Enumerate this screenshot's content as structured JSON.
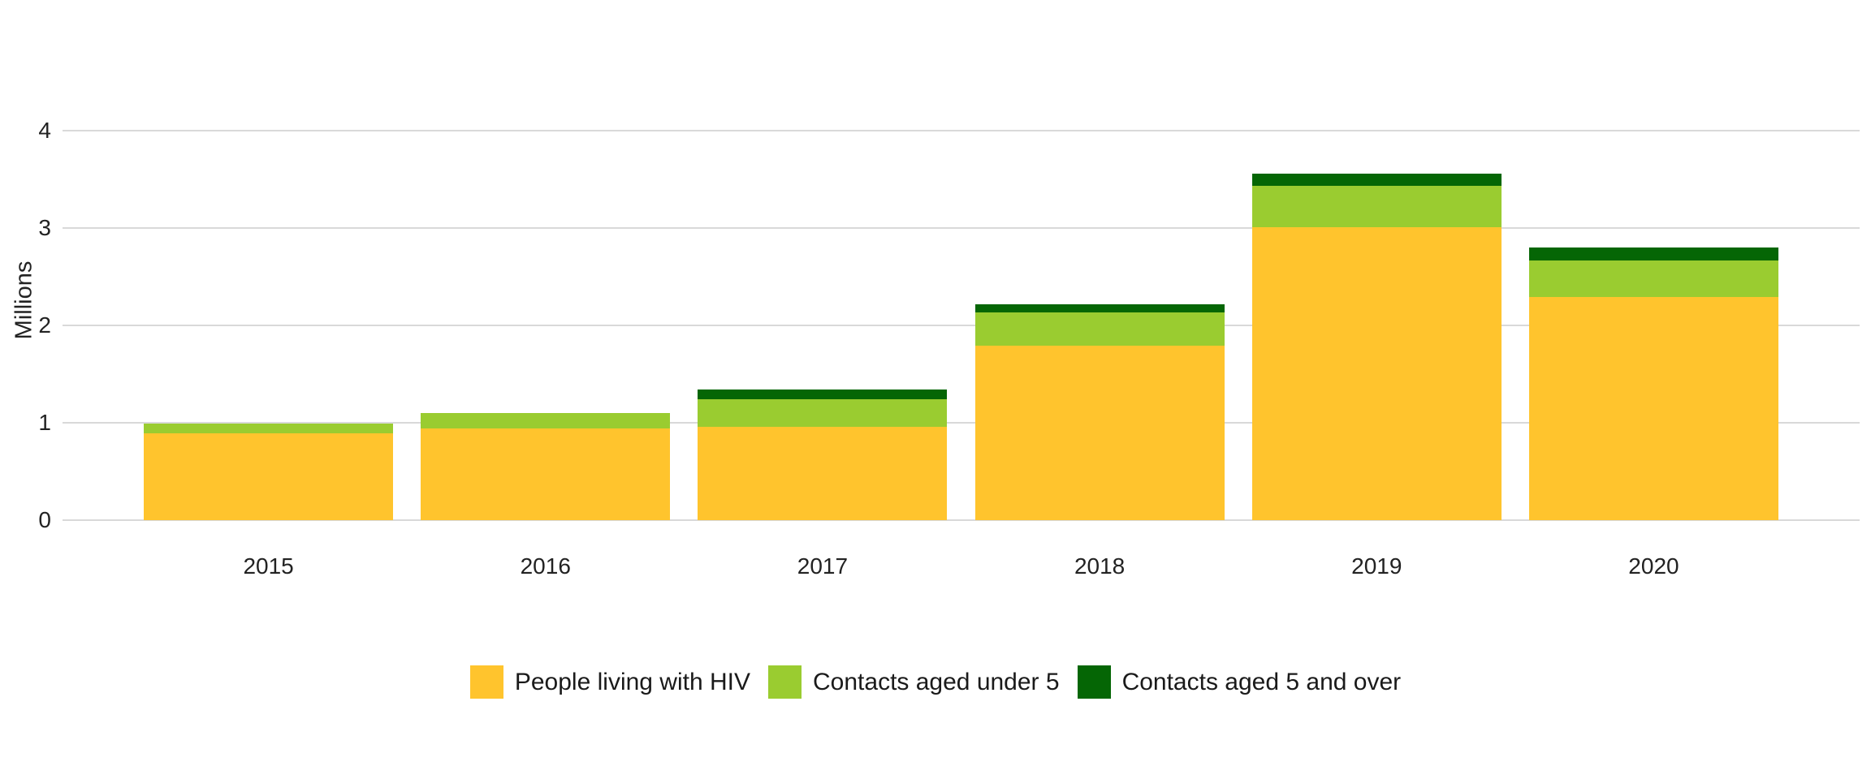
{
  "chart_data": {
    "type": "bar",
    "stacked": true,
    "title": "",
    "ylabel": "Millions",
    "xlabel": "",
    "categories": [
      "2015",
      "2016",
      "2017",
      "2018",
      "2019",
      "2020"
    ],
    "series": [
      {
        "name": "People living with HIV",
        "color": "#FFC42D",
        "values": [
          0.89,
          0.94,
          0.96,
          1.79,
          3.01,
          2.29
        ]
      },
      {
        "name": "Contacts aged under 5",
        "color": "#9ACC30",
        "values": [
          0.1,
          0.16,
          0.28,
          0.34,
          0.42,
          0.38
        ]
      },
      {
        "name": "Contacts aged 5 and over",
        "color": "#056605",
        "values": [
          0.0,
          0.0,
          0.1,
          0.09,
          0.13,
          0.13
        ]
      }
    ],
    "ylim": [
      0,
      4
    ],
    "yticks": [
      0,
      1,
      2,
      3,
      4
    ],
    "grid": true,
    "gridline_color": "#d9d9d9",
    "axis_text_color": "#222222",
    "legend_position": "bottom"
  }
}
